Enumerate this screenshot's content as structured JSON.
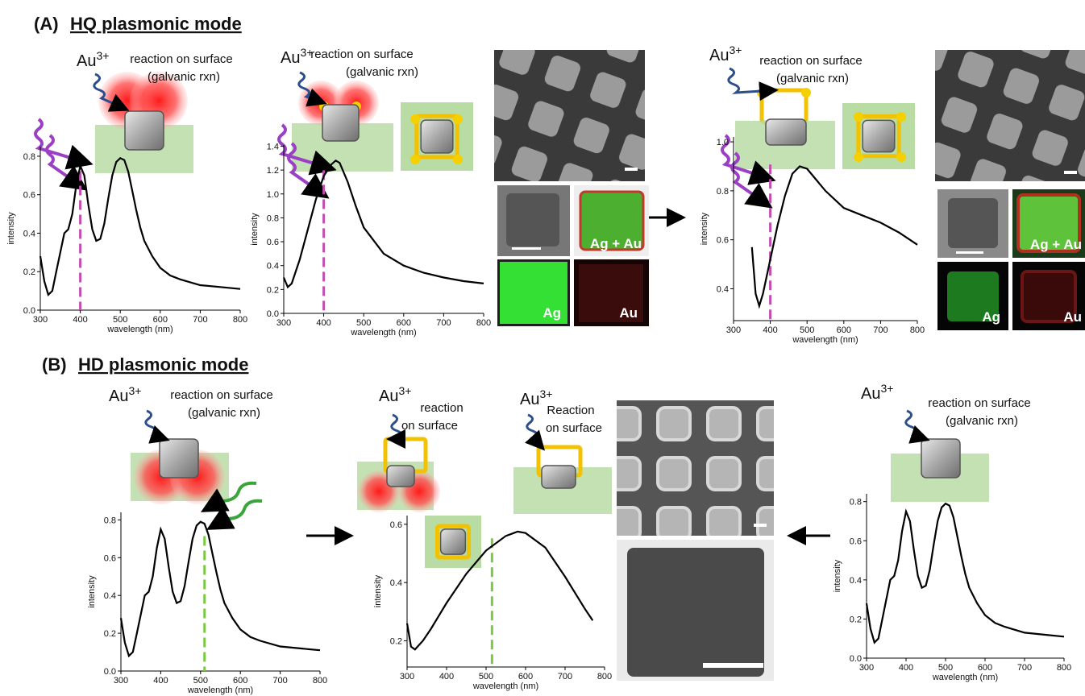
{
  "sections": [
    {
      "letter": "(A)",
      "title": "HQ plasmonic mode"
    },
    {
      "letter": "(B)",
      "title": "HD plasmonic mode"
    }
  ],
  "annotations": [
    {
      "ion": "Au",
      "charge": "3+",
      "lines": [
        "reaction on surface",
        "(galvanic rxn)"
      ]
    },
    {
      "ion": "Au",
      "charge": "3+",
      "lines": [
        "reaction on surface",
        "(galvanic rxn)"
      ]
    },
    {
      "ion": "Au",
      "charge": "3+",
      "lines": [
        "reaction on surface",
        "(galvanic rxn)"
      ]
    },
    {
      "ion": "Au",
      "charge": "3+",
      "lines": [
        "reaction on surface",
        "(galvanic rxn)"
      ]
    },
    {
      "ion": "Au",
      "charge": "3+",
      "lines": [
        "reaction",
        "on surface"
      ]
    },
    {
      "ion": "Au",
      "charge": "3+",
      "lines": [
        "Reaction",
        "on surface"
      ]
    },
    {
      "ion": "Au",
      "charge": "3+",
      "lines": [
        "reaction on surface",
        "(galvanic rxn)"
      ]
    }
  ],
  "eds_labels": [
    "Ag + Au",
    "Ag",
    "Au",
    "Ag + Au",
    "Ag",
    "Au"
  ],
  "chart_data": [
    {
      "type": "line",
      "xlabel": "wavelength (nm)",
      "ylabel": "intensity",
      "color": "#000000",
      "x": [
        300,
        310,
        320,
        330,
        340,
        350,
        360,
        370,
        380,
        390,
        400,
        410,
        420,
        430,
        440,
        450,
        460,
        470,
        480,
        490,
        500,
        510,
        520,
        530,
        540,
        550,
        560,
        580,
        600,
        625,
        650,
        700,
        750,
        800
      ],
      "values": [
        0.28,
        0.15,
        0.08,
        0.1,
        0.2,
        0.3,
        0.4,
        0.42,
        0.5,
        0.65,
        0.75,
        0.7,
        0.55,
        0.42,
        0.36,
        0.37,
        0.45,
        0.58,
        0.7,
        0.77,
        0.79,
        0.78,
        0.72,
        0.62,
        0.52,
        0.43,
        0.36,
        0.28,
        0.22,
        0.18,
        0.16,
        0.13,
        0.12,
        0.11
      ],
      "xlim": [
        300,
        800
      ],
      "xticks": [
        300,
        400,
        500,
        600,
        700,
        800
      ],
      "ylim": [
        0,
        0.85
      ],
      "yticks": [
        {
          "value": 0,
          "label": "0.0"
        },
        0.2,
        0.4,
        0.6,
        0.8
      ],
      "vline": 400,
      "vline_color": "#c04fb0"
    },
    {
      "type": "line",
      "xlabel": "wavelength (nm)",
      "ylabel": "intensity",
      "color": "#000000",
      "x": [
        300,
        310,
        320,
        340,
        360,
        380,
        400,
        420,
        430,
        440,
        460,
        480,
        500,
        550,
        600,
        650,
        700,
        750,
        800
      ],
      "values": [
        0.3,
        0.22,
        0.25,
        0.45,
        0.7,
        0.95,
        1.15,
        1.25,
        1.28,
        1.26,
        1.1,
        0.9,
        0.72,
        0.5,
        0.4,
        0.34,
        0.3,
        0.27,
        0.25
      ],
      "xlim": [
        300,
        800
      ],
      "xticks": [
        300,
        400,
        500,
        600,
        700,
        800
      ],
      "ylim": [
        0,
        1.41
      ],
      "yticks": [
        {
          "value": 0,
          "label": "0.0"
        },
        0.2,
        0.4,
        0.6,
        0.8,
        {
          "value": 1,
          "label": "1.0"
        },
        1.2,
        1.4
      ],
      "vline": 400,
      "vline_color": "#c04fb0"
    },
    {
      "type": "line",
      "xlabel": "wavelength (nm)",
      "ylabel": "intensity",
      "color": "#000000",
      "x": [
        350,
        360,
        370,
        380,
        400,
        420,
        440,
        460,
        480,
        500,
        550,
        600,
        650,
        700,
        750,
        800
      ],
      "values": [
        0.57,
        0.38,
        0.33,
        0.38,
        0.52,
        0.66,
        0.78,
        0.87,
        0.9,
        0.89,
        0.8,
        0.73,
        0.7,
        0.67,
        0.63,
        0.58
      ],
      "xlim": [
        300,
        800
      ],
      "xticks": [
        300,
        400,
        500,
        600,
        700,
        800
      ],
      "ylim": [
        0.27,
        1.02
      ],
      "yticks": [
        0.4,
        0.6,
        0.8,
        {
          "value": 1,
          "label": "1.0"
        }
      ],
      "vline": 400,
      "vline_color": "#c04fb0"
    },
    {
      "type": "line",
      "xlabel": "wavelength (nm)",
      "ylabel": "intensity",
      "color": "#000000",
      "x": [
        300,
        310,
        320,
        330,
        340,
        350,
        360,
        370,
        380,
        390,
        400,
        410,
        420,
        430,
        440,
        450,
        460,
        470,
        480,
        490,
        500,
        510,
        520,
        530,
        540,
        550,
        560,
        580,
        600,
        625,
        650,
        700,
        750,
        800
      ],
      "values": [
        0.28,
        0.15,
        0.08,
        0.1,
        0.2,
        0.3,
        0.4,
        0.42,
        0.5,
        0.65,
        0.75,
        0.7,
        0.55,
        0.42,
        0.36,
        0.37,
        0.45,
        0.58,
        0.7,
        0.77,
        0.79,
        0.78,
        0.72,
        0.62,
        0.52,
        0.43,
        0.36,
        0.28,
        0.22,
        0.18,
        0.16,
        0.13,
        0.12,
        0.11
      ],
      "xlim": [
        300,
        800
      ],
      "xticks": [
        300,
        400,
        500,
        600,
        700,
        800
      ],
      "ylim": [
        0,
        0.84
      ],
      "yticks": [
        {
          "value": 0,
          "label": "0.0"
        },
        0.2,
        0.4,
        0.6,
        0.8
      ],
      "vline": 510,
      "vline_color": "#7ac943"
    },
    {
      "type": "line",
      "xlabel": "wavelength (nm)",
      "ylabel": "intensity",
      "color": "#000000",
      "x": [
        300,
        310,
        320,
        340,
        360,
        400,
        450,
        500,
        550,
        580,
        600,
        650,
        700,
        750,
        770
      ],
      "values": [
        0.26,
        0.18,
        0.17,
        0.2,
        0.24,
        0.33,
        0.43,
        0.51,
        0.56,
        0.575,
        0.57,
        0.52,
        0.42,
        0.31,
        0.27
      ],
      "xlim": [
        300,
        800
      ],
      "xticks": [
        300,
        400,
        500,
        600,
        700,
        800
      ],
      "ylim": [
        0.11,
        0.63
      ],
      "yticks": [
        0.2,
        0.4,
        0.6
      ],
      "vline": 515,
      "vline_color": "#7ac943"
    },
    {
      "type": "line",
      "xlabel": "wavelength (nm)",
      "ylabel": "intensity",
      "color": "#000000",
      "x": [
        300,
        310,
        320,
        330,
        340,
        350,
        360,
        370,
        380,
        390,
        400,
        410,
        420,
        430,
        440,
        450,
        460,
        470,
        480,
        490,
        500,
        510,
        520,
        530,
        540,
        550,
        560,
        580,
        600,
        625,
        650,
        700,
        750,
        800
      ],
      "values": [
        0.28,
        0.15,
        0.08,
        0.1,
        0.2,
        0.3,
        0.4,
        0.42,
        0.5,
        0.65,
        0.75,
        0.7,
        0.55,
        0.42,
        0.36,
        0.37,
        0.45,
        0.58,
        0.7,
        0.77,
        0.79,
        0.78,
        0.72,
        0.62,
        0.52,
        0.43,
        0.36,
        0.28,
        0.22,
        0.18,
        0.16,
        0.13,
        0.12,
        0.11
      ],
      "xlim": [
        300,
        800
      ],
      "xticks": [
        300,
        400,
        500,
        600,
        700,
        800
      ],
      "ylim": [
        0,
        0.84
      ],
      "yticks": [
        {
          "value": 0,
          "label": "0.0"
        },
        0.2,
        0.4,
        0.6,
        0.8
      ]
    }
  ]
}
